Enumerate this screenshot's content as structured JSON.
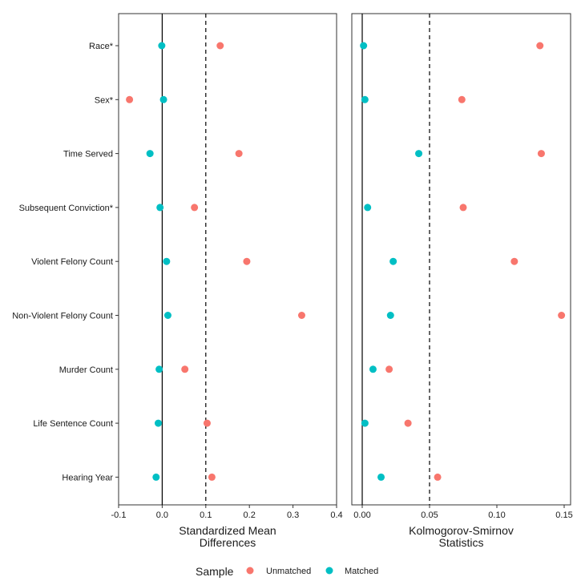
{
  "chart_data": {
    "type": "scatter",
    "categories": [
      "Race*",
      "Sex*",
      "Time Served",
      "Subsequent Conviction*",
      "Violent Felony Count",
      "Non-Violent Felony Count",
      "Murder Count",
      "Life Sentence Count",
      "Hearing Year"
    ],
    "legend": {
      "title": "Sample",
      "placement": "bottom",
      "entries": [
        {
          "name": "Unmatched",
          "color": "#F8766D"
        },
        {
          "name": "Matched",
          "color": "#00BFC4"
        }
      ]
    },
    "panels": [
      {
        "xlabel": [
          "Standardized Mean",
          "Differences"
        ],
        "xlim": [
          -0.1,
          0.4
        ],
        "ticks": [
          -0.1,
          0.0,
          0.1,
          0.2,
          0.3,
          0.4
        ],
        "tick_labels": [
          "-0.1",
          "0.0",
          "0.1",
          "0.2",
          "0.3",
          "0.4"
        ],
        "zero_line": 0.0,
        "threshold_line": 0.1,
        "series": [
          {
            "name": "Unmatched",
            "values": [
              0.133,
              -0.075,
              0.176,
              0.074,
              0.194,
              0.32,
              0.052,
              0.103,
              0.114
            ]
          },
          {
            "name": "Matched",
            "values": [
              -0.001,
              0.003,
              -0.028,
              -0.005,
              0.01,
              0.013,
              -0.007,
              -0.009,
              -0.014
            ]
          }
        ]
      },
      {
        "xlabel": [
          "Kolmogorov-Smirnov",
          "Statistics"
        ],
        "xlim": [
          0.0,
          0.15
        ],
        "ticks": [
          0.0,
          0.05,
          0.1,
          0.15
        ],
        "tick_labels": [
          "0.00",
          "0.05",
          "0.10",
          "0.15"
        ],
        "zero_line": 0.0,
        "threshold_line": 0.05,
        "series": [
          {
            "name": "Unmatched",
            "values": [
              0.132,
              0.074,
              0.133,
              0.075,
              0.113,
              0.148,
              0.02,
              0.034,
              0.056
            ]
          },
          {
            "name": "Matched",
            "values": [
              0.001,
              0.002,
              0.042,
              0.004,
              0.023,
              0.021,
              0.008,
              0.002,
              0.014
            ]
          }
        ]
      }
    ]
  }
}
